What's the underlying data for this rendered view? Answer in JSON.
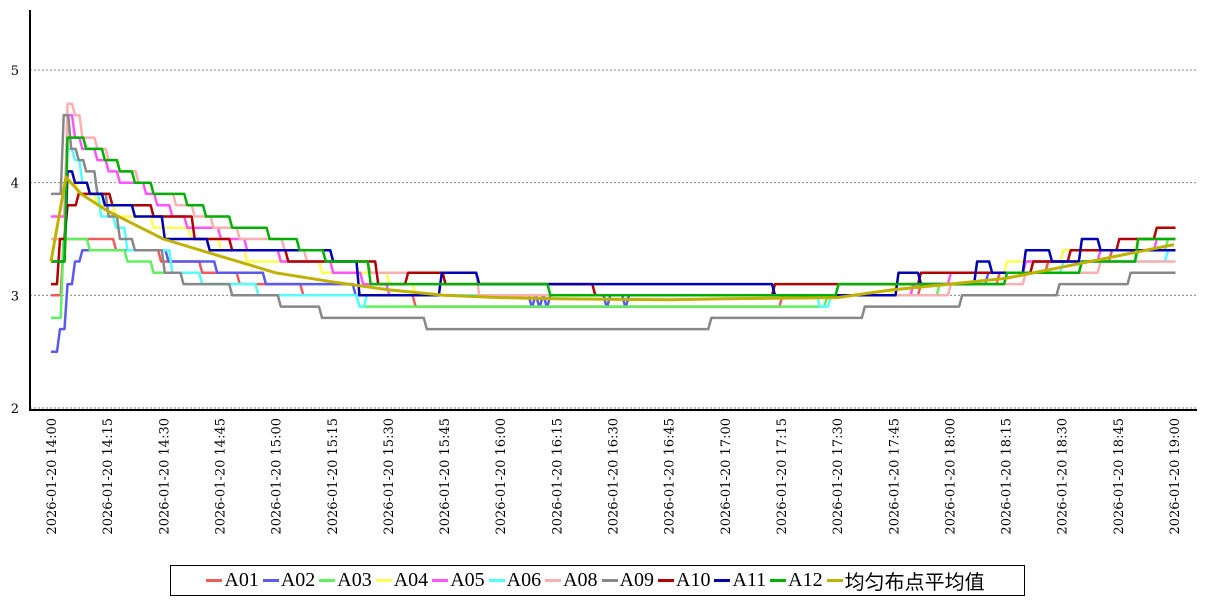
{
  "chart_data": {
    "type": "line",
    "title": "",
    "xlabel": "",
    "ylabel": "",
    "ylim": [
      2,
      5.5
    ],
    "yticks": [
      "2",
      "3",
      "4",
      "5"
    ],
    "xlim": [
      "2026-01-20 14:00",
      "2026-01-20 19:00"
    ],
    "xticks": [
      "2026-01-20 14:00",
      "2026-01-20 14:15",
      "2026-01-20 14:30",
      "2026-01-20 14:45",
      "2026-01-20 15:00",
      "2026-01-20 15:15",
      "2026-01-20 15:30",
      "2026-01-20 15:45",
      "2026-01-20 16:00",
      "2026-01-20 16:15",
      "2026-01-20 16:30",
      "2026-01-20 16:45",
      "2026-01-20 17:00",
      "2026-01-20 17:15",
      "2026-01-20 17:30",
      "2026-01-20 17:45",
      "2026-01-20 18:00",
      "2026-01-20 18:15",
      "2026-01-20 18:30",
      "2026-01-20 18:45",
      "2026-01-20 19:00"
    ],
    "grid": "horizontal dotted",
    "legend_position": "bottom",
    "series": [
      {
        "name": "A01",
        "color": "#f05a5a",
        "step": true,
        "points": [
          [
            "14:00",
            3.0
          ],
          [
            "14:03",
            3.5
          ],
          [
            "14:17",
            3.4
          ],
          [
            "14:29",
            3.3
          ],
          [
            "14:40",
            3.2
          ],
          [
            "14:50",
            3.1
          ],
          [
            "15:07",
            3.0
          ],
          [
            "15:37",
            2.9
          ],
          [
            "17:15",
            3.0
          ],
          [
            "17:52",
            3.1
          ],
          [
            "18:13",
            3.2
          ],
          [
            "18:26",
            3.3
          ],
          [
            "18:43",
            3.4
          ],
          [
            "19:00",
            3.4
          ]
        ]
      },
      {
        "name": "A02",
        "color": "#5a5aee",
        "step": true,
        "points": [
          [
            "14:00",
            2.5
          ],
          [
            "14:02",
            2.7
          ],
          [
            "14:04",
            3.1
          ],
          [
            "14:06",
            3.3
          ],
          [
            "14:08",
            3.4
          ],
          [
            "14:31",
            3.3
          ],
          [
            "14:44",
            3.2
          ],
          [
            "14:57",
            3.1
          ],
          [
            "15:21",
            3.0
          ],
          [
            "16:08",
            2.9
          ],
          [
            "16:09",
            3.0
          ],
          [
            "16:10",
            2.9
          ],
          [
            "16:11",
            3.0
          ],
          [
            "16:12",
            2.9
          ],
          [
            "16:13",
            3.0
          ],
          [
            "16:28",
            2.9
          ],
          [
            "16:29",
            3.0
          ],
          [
            "16:33",
            2.9
          ],
          [
            "16:34",
            3.0
          ],
          [
            "17:50",
            3.1
          ],
          [
            "18:10",
            3.2
          ],
          [
            "18:20",
            3.3
          ],
          [
            "18:30",
            3.4
          ],
          [
            "19:00",
            3.4
          ]
        ]
      },
      {
        "name": "A03",
        "color": "#60f060",
        "step": true,
        "points": [
          [
            "14:00",
            2.8
          ],
          [
            "14:03",
            3.5
          ],
          [
            "14:10",
            3.4
          ],
          [
            "14:20",
            3.3
          ],
          [
            "14:27",
            3.2
          ],
          [
            "14:40",
            3.1
          ],
          [
            "14:55",
            3.0
          ],
          [
            "15:22",
            2.9
          ],
          [
            "17:27",
            3.0
          ],
          [
            "17:57",
            3.1
          ],
          [
            "18:15",
            3.2
          ],
          [
            "18:35",
            3.3
          ],
          [
            "18:50",
            3.4
          ],
          [
            "18:58",
            3.5
          ],
          [
            "19:00",
            3.5
          ]
        ]
      },
      {
        "name": "A04",
        "color": "#ffff55",
        "step": true,
        "points": [
          [
            "14:00",
            3.3
          ],
          [
            "14:04",
            4.0
          ],
          [
            "14:07",
            3.9
          ],
          [
            "14:12",
            3.8
          ],
          [
            "14:17",
            3.7
          ],
          [
            "14:27",
            3.6
          ],
          [
            "14:37",
            3.5
          ],
          [
            "14:45",
            3.4
          ],
          [
            "14:52",
            3.3
          ],
          [
            "15:12",
            3.2
          ],
          [
            "15:30",
            3.1
          ],
          [
            "15:37",
            3.0
          ],
          [
            "17:45",
            3.1
          ],
          [
            "18:00",
            3.2
          ],
          [
            "18:15",
            3.3
          ],
          [
            "18:30",
            3.4
          ],
          [
            "18:50",
            3.5
          ],
          [
            "19:00",
            3.5
          ]
        ]
      },
      {
        "name": "A05",
        "color": "#ff55ff",
        "step": true,
        "points": [
          [
            "14:00",
            3.7
          ],
          [
            "14:04",
            4.6
          ],
          [
            "14:06",
            4.4
          ],
          [
            "14:08",
            4.3
          ],
          [
            "14:12",
            4.2
          ],
          [
            "14:15",
            4.1
          ],
          [
            "14:18",
            4.0
          ],
          [
            "14:25",
            3.9
          ],
          [
            "14:28",
            3.8
          ],
          [
            "14:32",
            3.7
          ],
          [
            "14:36",
            3.6
          ],
          [
            "14:45",
            3.5
          ],
          [
            "14:52",
            3.4
          ],
          [
            "15:01",
            3.3
          ],
          [
            "15:15",
            3.2
          ],
          [
            "15:23",
            3.1
          ],
          [
            "15:30",
            3.0
          ],
          [
            "17:50",
            3.1
          ],
          [
            "18:00",
            3.2
          ],
          [
            "18:20",
            3.3
          ],
          [
            "18:40",
            3.4
          ],
          [
            "18:55",
            3.5
          ],
          [
            "19:00",
            3.5
          ]
        ]
      },
      {
        "name": "A06",
        "color": "#55ffff",
        "step": true,
        "points": [
          [
            "14:00",
            3.5
          ],
          [
            "14:04",
            4.3
          ],
          [
            "14:06",
            4.2
          ],
          [
            "14:08",
            4.0
          ],
          [
            "14:10",
            3.9
          ],
          [
            "14:13",
            3.7
          ],
          [
            "14:17",
            3.6
          ],
          [
            "14:20",
            3.4
          ],
          [
            "14:32",
            3.2
          ],
          [
            "14:40",
            3.1
          ],
          [
            "14:55",
            3.0
          ],
          [
            "15:22",
            2.9
          ],
          [
            "15:24",
            3.0
          ],
          [
            "17:25",
            2.9
          ],
          [
            "17:28",
            3.0
          ],
          [
            "18:00",
            3.1
          ],
          [
            "18:15",
            3.2
          ],
          [
            "18:30",
            3.3
          ],
          [
            "18:58",
            3.4
          ],
          [
            "19:00",
            3.4
          ]
        ]
      },
      {
        "name": "A08",
        "color": "#f8b0b0",
        "step": true,
        "points": [
          [
            "14:00",
            3.5
          ],
          [
            "14:04",
            4.7
          ],
          [
            "14:06",
            4.6
          ],
          [
            "14:08",
            4.4
          ],
          [
            "14:12",
            4.3
          ],
          [
            "14:15",
            4.2
          ],
          [
            "14:18",
            4.1
          ],
          [
            "14:23",
            4.0
          ],
          [
            "14:27",
            3.9
          ],
          [
            "14:33",
            3.8
          ],
          [
            "14:38",
            3.7
          ],
          [
            "14:43",
            3.6
          ],
          [
            "14:50",
            3.5
          ],
          [
            "15:02",
            3.4
          ],
          [
            "15:08",
            3.3
          ],
          [
            "15:25",
            3.2
          ],
          [
            "15:54",
            3.0
          ],
          [
            "18:00",
            3.1
          ],
          [
            "18:20",
            3.2
          ],
          [
            "18:40",
            3.3
          ],
          [
            "19:00",
            3.3
          ]
        ]
      },
      {
        "name": "A09",
        "color": "#888888",
        "step": true,
        "points": [
          [
            "14:00",
            3.9
          ],
          [
            "14:03",
            4.6
          ],
          [
            "14:05",
            4.3
          ],
          [
            "14:07",
            4.2
          ],
          [
            "14:09",
            4.1
          ],
          [
            "14:12",
            3.9
          ],
          [
            "14:15",
            3.7
          ],
          [
            "14:18",
            3.5
          ],
          [
            "14:22",
            3.4
          ],
          [
            "14:30",
            3.2
          ],
          [
            "14:35",
            3.1
          ],
          [
            "14:48",
            3.0
          ],
          [
            "15:01",
            2.9
          ],
          [
            "15:12",
            2.8
          ],
          [
            "15:40",
            2.7
          ],
          [
            "16:56",
            2.8
          ],
          [
            "17:37",
            2.9
          ],
          [
            "18:03",
            3.0
          ],
          [
            "18:29",
            3.1
          ],
          [
            "18:48",
            3.2
          ],
          [
            "19:00",
            3.2
          ]
        ]
      },
      {
        "name": "A10",
        "color": "#b00000",
        "step": true,
        "points": [
          [
            "14:00",
            3.1
          ],
          [
            "14:02",
            3.5
          ],
          [
            "14:04",
            3.8
          ],
          [
            "14:07",
            3.9
          ],
          [
            "14:16",
            3.8
          ],
          [
            "14:27",
            3.7
          ],
          [
            "14:38",
            3.5
          ],
          [
            "14:48",
            3.4
          ],
          [
            "15:03",
            3.3
          ],
          [
            "15:27",
            3.1
          ],
          [
            "15:35",
            3.2
          ],
          [
            "15:45",
            3.1
          ],
          [
            "16:25",
            3.0
          ],
          [
            "17:13",
            3.1
          ],
          [
            "17:52",
            3.2
          ],
          [
            "18:22",
            3.3
          ],
          [
            "18:32",
            3.4
          ],
          [
            "18:45",
            3.5
          ],
          [
            "18:55",
            3.6
          ],
          [
            "19:00",
            3.6
          ]
        ]
      },
      {
        "name": "A11",
        "color": "#0000b0",
        "step": true,
        "points": [
          [
            "14:00",
            3.3
          ],
          [
            "14:04",
            4.1
          ],
          [
            "14:06",
            4.0
          ],
          [
            "14:10",
            3.9
          ],
          [
            "14:14",
            3.8
          ],
          [
            "14:22",
            3.7
          ],
          [
            "14:30",
            3.5
          ],
          [
            "14:42",
            3.4
          ],
          [
            "15:15",
            3.3
          ],
          [
            "15:22",
            3.0
          ],
          [
            "15:44",
            3.2
          ],
          [
            "15:54",
            3.1
          ],
          [
            "17:13",
            3.0
          ],
          [
            "17:46",
            3.2
          ],
          [
            "17:52",
            3.1
          ],
          [
            "18:07",
            3.3
          ],
          [
            "18:11",
            3.2
          ],
          [
            "18:20",
            3.4
          ],
          [
            "18:27",
            3.3
          ],
          [
            "18:35",
            3.5
          ],
          [
            "18:40",
            3.4
          ],
          [
            "19:00",
            3.4
          ]
        ]
      },
      {
        "name": "A12",
        "color": "#00b000",
        "step": true,
        "points": [
          [
            "14:00",
            3.3
          ],
          [
            "14:04",
            4.4
          ],
          [
            "14:09",
            4.3
          ],
          [
            "14:14",
            4.2
          ],
          [
            "14:18",
            4.1
          ],
          [
            "14:22",
            4.0
          ],
          [
            "14:27",
            3.9
          ],
          [
            "14:36",
            3.8
          ],
          [
            "14:41",
            3.7
          ],
          [
            "14:48",
            3.6
          ],
          [
            "14:58",
            3.5
          ],
          [
            "15:06",
            3.4
          ],
          [
            "15:13",
            3.3
          ],
          [
            "15:25",
            3.1
          ],
          [
            "16:13",
            3.0
          ],
          [
            "17:30",
            3.1
          ],
          [
            "18:15",
            3.2
          ],
          [
            "18:35",
            3.3
          ],
          [
            "18:50",
            3.5
          ],
          [
            "19:00",
            3.5
          ]
        ]
      },
      {
        "name": "均匀布点平均值",
        "color": "#c0b000",
        "step": false,
        "points": [
          [
            "14:00",
            3.3
          ],
          [
            "14:04",
            4.05
          ],
          [
            "14:08",
            3.9
          ],
          [
            "14:15",
            3.75
          ],
          [
            "14:30",
            3.5
          ],
          [
            "14:45",
            3.35
          ],
          [
            "15:00",
            3.2
          ],
          [
            "15:15",
            3.12
          ],
          [
            "15:30",
            3.05
          ],
          [
            "15:45",
            3.0
          ],
          [
            "16:00",
            2.98
          ],
          [
            "16:15",
            2.97
          ],
          [
            "16:45",
            2.96
          ],
          [
            "17:00",
            2.97
          ],
          [
            "17:30",
            2.98
          ],
          [
            "17:45",
            3.05
          ],
          [
            "18:00",
            3.1
          ],
          [
            "18:15",
            3.15
          ],
          [
            "18:30",
            3.25
          ],
          [
            "18:45",
            3.35
          ],
          [
            "19:00",
            3.45
          ]
        ]
      }
    ]
  }
}
